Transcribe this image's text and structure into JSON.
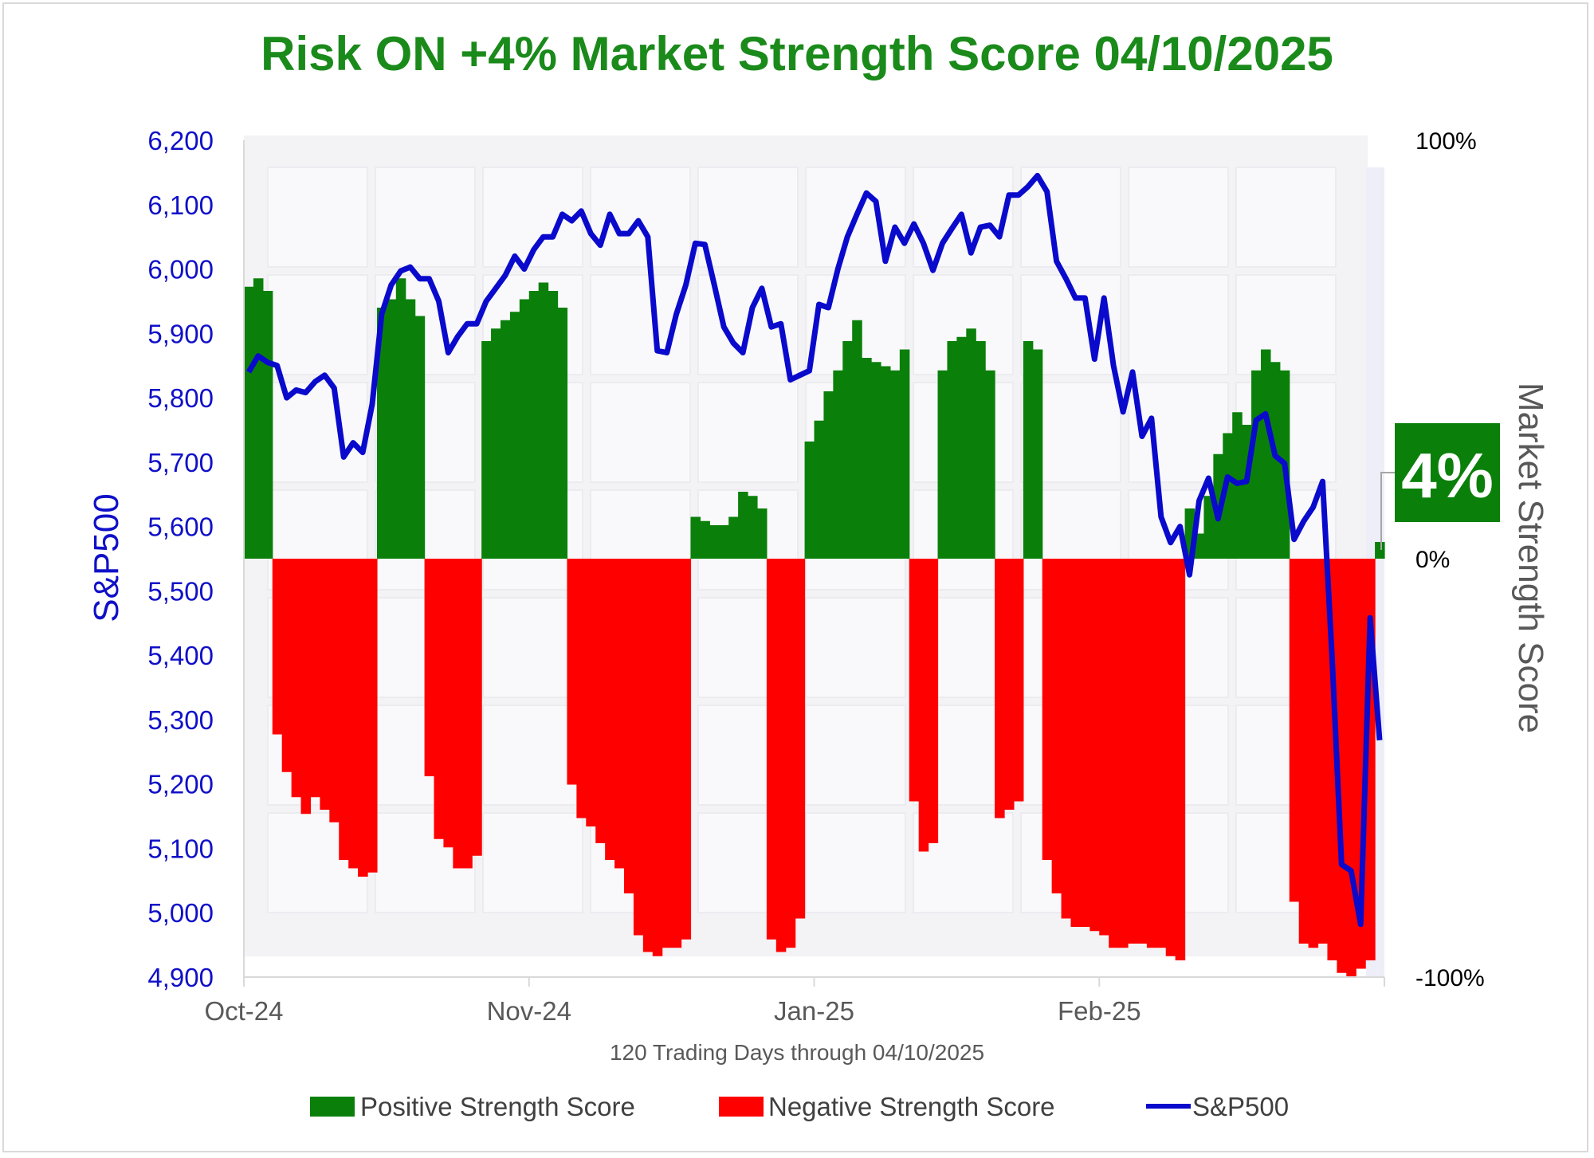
{
  "chart_data": {
    "type": "bar",
    "title": "Risk ON +4% Market Strength Score 04/10/2025",
    "xlabel": "120 Trading Days through 04/10/2025",
    "ylabel_left": "S&P500",
    "ylabel_right": "Market Strength Score",
    "ylim_left": [
      4900,
      6200
    ],
    "ylim_right": [
      -100,
      100
    ],
    "left_ticks": [
      "6,200",
      "6,100",
      "6,000",
      "5,900",
      "5,800",
      "5,700",
      "5,600",
      "5,500",
      "5,400",
      "5,300",
      "5,200",
      "5,100",
      "5,000",
      "4,900"
    ],
    "right_ticks": [
      "100%",
      "0%",
      "-100%"
    ],
    "x_ticks": [
      {
        "label": "Oct-24",
        "index": 0
      },
      {
        "label": "Nov-24",
        "index": 30
      },
      {
        "label": "Jan-25",
        "index": 60
      },
      {
        "label": "Feb-25",
        "index": 90
      }
    ],
    "grid": false,
    "legend_position": "bottom",
    "series": [
      {
        "name": "Positive Strength Score",
        "kind": "bar",
        "color": "#0a800a"
      },
      {
        "name": "Negative Strength Score",
        "kind": "bar",
        "color": "#ff0000"
      },
      {
        "name": "S&P500",
        "kind": "line",
        "color": "#0a0acc"
      }
    ],
    "strength_score": [
      65,
      67,
      64,
      -42,
      -51,
      -57,
      -61,
      -57,
      -60,
      -63,
      -72,
      -74,
      -76,
      -75,
      60,
      62,
      67,
      62,
      58,
      -52,
      -67,
      -69,
      -74,
      -74,
      -71,
      52,
      55,
      57,
      59,
      62,
      64,
      66,
      64,
      60,
      -54,
      -62,
      -64,
      -68,
      -72,
      -74,
      -80,
      -90,
      -94,
      -95,
      -93,
      -93,
      -91,
      10,
      9,
      8,
      8,
      10,
      16,
      15,
      12,
      -91,
      -94,
      -93,
      -86,
      28,
      33,
      40,
      45,
      52,
      57,
      48,
      47,
      46,
      45,
      50,
      -58,
      -70,
      -68,
      45,
      52,
      53,
      55,
      52,
      45,
      -62,
      -60,
      -58,
      52,
      50,
      -72,
      -80,
      -86,
      -88,
      -88,
      -89,
      -90,
      -93,
      -93,
      -92,
      -92,
      -93,
      -93,
      -95,
      -96,
      12,
      6,
      15,
      25,
      30,
      35,
      32,
      45,
      50,
      47,
      45,
      -82,
      -92,
      -93,
      -92,
      -96,
      -99,
      -100,
      -98,
      -96,
      4
    ],
    "sp500": [
      5840,
      5865,
      5855,
      5850,
      5800,
      5812,
      5808,
      5825,
      5835,
      5815,
      5708,
      5730,
      5715,
      5790,
      5930,
      5975,
      5997,
      6003,
      5985,
      5985,
      5950,
      5870,
      5895,
      5915,
      5915,
      5950,
      5970,
      5990,
      6020,
      6000,
      6030,
      6050,
      6050,
      6085,
      6075,
      6090,
      6055,
      6037,
      6085,
      6055,
      6055,
      6075,
      6050,
      5873,
      5870,
      5930,
      5975,
      6040,
      6038,
      5975,
      5910,
      5885,
      5870,
      5940,
      5970,
      5910,
      5915,
      5828,
      5835,
      5842,
      5945,
      5940,
      6000,
      6050,
      6085,
      6118,
      6105,
      6012,
      6065,
      6040,
      6070,
      6040,
      5998,
      6040,
      6063,
      6085,
      6025,
      6065,
      6068,
      6050,
      6115,
      6115,
      6128,
      6145,
      6120,
      6012,
      5985,
      5955,
      5955,
      5860,
      5955,
      5850,
      5778,
      5840,
      5740,
      5768,
      5615,
      5575,
      5600,
      5525,
      5640,
      5675,
      5612,
      5677,
      5667,
      5670,
      5765,
      5775,
      5710,
      5698,
      5580,
      5608,
      5630,
      5670,
      5396,
      5075,
      5065,
      4982,
      5458,
      5268
    ],
    "callout": {
      "label": "4%",
      "value": 4,
      "color": "#0a800a"
    }
  }
}
